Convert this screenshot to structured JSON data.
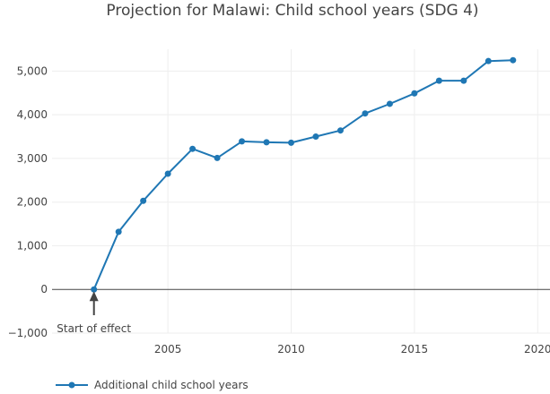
{
  "colors": {
    "series": "#1f77b4",
    "grid": "#eeeeee",
    "text": "#444444",
    "zeroline": "#444444"
  },
  "chart_data": {
    "type": "line",
    "title": "Projection for Malawi: Child school years (SDG 4)",
    "xlabel": "",
    "ylabel": "",
    "xlim": [
      2000.3,
      2020.5
    ],
    "ylim": [
      -1000,
      5500
    ],
    "x_ticks": [
      2005,
      2010,
      2015,
      2020
    ],
    "x_tick_labels": [
      "2005",
      "2010",
      "2015",
      "2020"
    ],
    "y_ticks": [
      -1000,
      0,
      1000,
      2000,
      3000,
      4000,
      5000
    ],
    "y_tick_labels": [
      "−1,000",
      "0",
      "1,000",
      "2,000",
      "3,000",
      "4,000",
      "5,000"
    ],
    "series": [
      {
        "name": "Additional child school years",
        "x": [
          2002,
          2003,
          2004,
          2005,
          2006,
          2007,
          2008,
          2009,
          2010,
          2011,
          2012,
          2013,
          2014,
          2015,
          2016,
          2017,
          2018,
          2019
        ],
        "values": [
          0,
          1320,
          2030,
          2650,
          3220,
          3010,
          3390,
          3370,
          3360,
          3500,
          3640,
          4030,
          4250,
          4490,
          4780,
          4780,
          5230,
          5250
        ]
      }
    ],
    "annotations": [
      {
        "text": "Start of effect",
        "x": 2002,
        "y": 0,
        "arrow": true
      }
    ],
    "legend": {
      "position": "bottom-left"
    }
  }
}
